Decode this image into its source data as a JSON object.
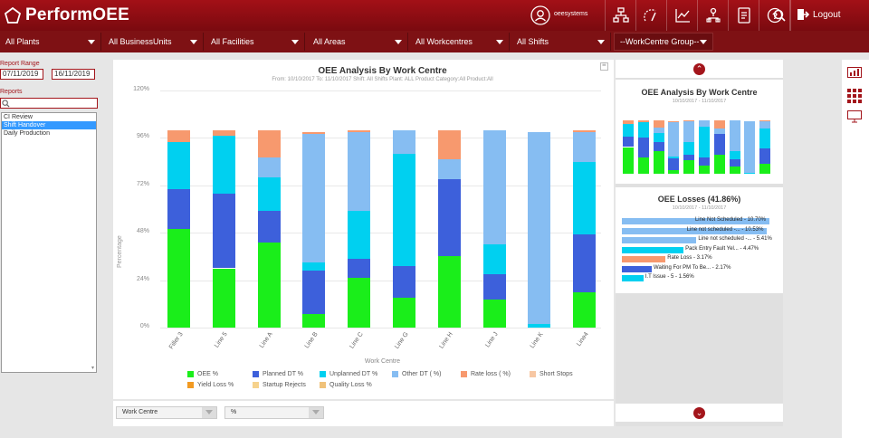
{
  "header": {
    "logo_text": "PerformOEE",
    "user_name": "oeesystems",
    "logout_label": "Logout",
    "icons": [
      "user-icon",
      "hierarchy-icon",
      "gauge-icon",
      "line-chart-icon",
      "person-tree-icon",
      "document-icon",
      "help-icon",
      "search-icon",
      "logout-icon"
    ]
  },
  "filters": [
    {
      "label": "All Plants"
    },
    {
      "label": "All BusinessUnits"
    },
    {
      "label": "All Facilities"
    },
    {
      "label": "All Areas"
    },
    {
      "label": "All Workcentres"
    },
    {
      "label": "All Shifts"
    },
    {
      "label": "--WorkCentre Group--"
    }
  ],
  "sidebar": {
    "report_range_label": "Report Range",
    "date_from": "07/11/2019",
    "date_to": "16/11/2019",
    "reports_label": "Reports",
    "search_placeholder": "",
    "reports": [
      {
        "label": "CI Review",
        "selected": false
      },
      {
        "label": "Shift Handover",
        "selected": true
      },
      {
        "label": "Daily Production",
        "selected": false
      }
    ]
  },
  "main_chart": {
    "title": "OEE Analysis By Work Centre",
    "subtitle": "From: 10/10/2017   To: 11/10/2017   Shift: All Shifts   Plant: ALL   Product Category:All   Product:All",
    "ylabel": "Percentage",
    "xlabel": "Work Centre",
    "y_ticks": [
      "0%",
      "24%",
      "48%",
      "72%",
      "96%",
      "120%"
    ]
  },
  "chart_data": {
    "type": "bar",
    "stacked": true,
    "title": "OEE Analysis By Work Centre",
    "xlabel": "Work Centre",
    "ylabel": "Percentage",
    "ylim": [
      0,
      120
    ],
    "categories": [
      "Filler 3",
      "Line 5",
      "Line A",
      "Line B",
      "Line C",
      "Line G",
      "Line H",
      "Line J",
      "Line K",
      "Line4"
    ],
    "series": [
      {
        "name": "OEE %",
        "color": "#1aee1a",
        "values": [
          50,
          30,
          43,
          7,
          25,
          15,
          36,
          14,
          0,
          18
        ]
      },
      {
        "name": "Planned DT %",
        "color": "#3d60db",
        "values": [
          20,
          38,
          16,
          22,
          10,
          16,
          39,
          13,
          0,
          29
        ]
      },
      {
        "name": "Unplanned DT %",
        "color": "#00d0f0",
        "values": [
          24,
          29,
          17,
          4,
          24,
          57,
          0,
          15,
          2,
          37
        ]
      },
      {
        "name": "Other DT ( %)",
        "color": "#86bdf2",
        "values": [
          0,
          0,
          10,
          65,
          40,
          12,
          10,
          58,
          97,
          15
        ]
      },
      {
        "name": "Rate loss ( %)",
        "color": "#f7996e",
        "values": [
          6,
          3,
          14,
          1,
          1,
          0,
          15,
          0,
          0,
          1
        ]
      },
      {
        "name": "Short Stops",
        "color": "#f7c7a3",
        "values": [
          0,
          0,
          0,
          0,
          0,
          0,
          0,
          0,
          0,
          0
        ]
      },
      {
        "name": "Yield Loss %",
        "color": "#f29a22",
        "values": [
          0,
          0,
          0,
          0,
          0,
          0,
          0,
          0,
          0,
          0
        ]
      },
      {
        "name": "Startup Rejects",
        "color": "#f6d28c",
        "values": [
          0,
          0,
          0,
          0,
          0,
          0,
          0,
          0,
          0,
          0
        ]
      },
      {
        "name": "Quality Loss %",
        "color": "#f0c27a",
        "values": [
          0,
          0,
          0,
          0,
          0,
          0,
          0,
          0,
          0,
          0
        ]
      }
    ],
    "legend_position": "bottom"
  },
  "bottom": {
    "select1": "Work Centre",
    "select2": "%"
  },
  "right_panel": {
    "mini_title": "OEE Analysis By Work Centre",
    "mini_subtitle": "10/10/2017 - 11/10/2017",
    "losses_title": "OEE Losses (41.86%)",
    "losses_subtitle": "10/10/2017 - 11/10/2017",
    "losses": [
      {
        "label": "Line Not Scheduled - 10.70%",
        "value": 10.7,
        "color": "#86bdf2"
      },
      {
        "label": "Line not scheduled -... - 10.53%",
        "value": 10.53,
        "color": "#86bdf2"
      },
      {
        "label": "Line not scheduled -... - 5.41%",
        "value": 5.41,
        "color": "#86bdf2"
      },
      {
        "label": "Pack Entry Fault Yel... - 4.47%",
        "value": 4.47,
        "color": "#00d0f0"
      },
      {
        "label": "Rate Loss - 3.17%",
        "value": 3.17,
        "color": "#f7996e"
      },
      {
        "label": "Waiting For PM To Be... - 2.17%",
        "value": 2.17,
        "color": "#3d60db"
      },
      {
        "label": "I.T Issue - 5 - 1.56%",
        "value": 1.56,
        "color": "#00d0f0"
      }
    ]
  },
  "colors": {
    "brand": "#a3151b",
    "brand_dark": "#7e1114"
  }
}
